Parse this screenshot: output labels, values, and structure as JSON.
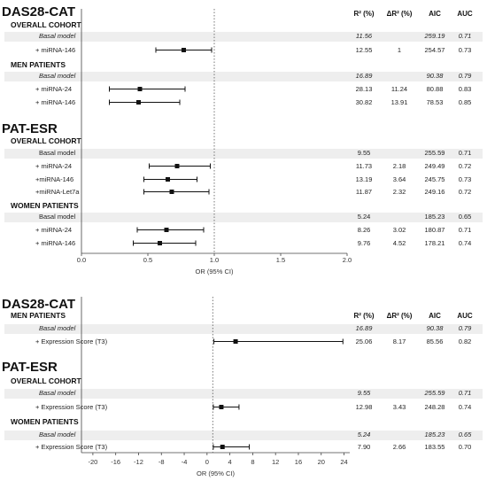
{
  "chart_data": [
    {
      "type": "forest",
      "titles": {
        "das28": "DAS28-CAT",
        "patesr": "PAT-ESR"
      },
      "xlabel": "OR (95% CI)",
      "xlim": [
        0.0,
        2.0
      ],
      "xticks": [
        "0.0",
        "0.5",
        "1.0",
        "1.5",
        "2.0"
      ],
      "reference_line": 1.0,
      "columns": [
        "R² (%)",
        "ΔR² (%)",
        "AIC",
        "AUC"
      ],
      "sections": [
        {
          "key": "das28_overall",
          "label": "OVERALL COHORT"
        },
        {
          "key": "das28_men",
          "label": "MEN PATIENTS"
        },
        {
          "key": "pat_overall",
          "label": "OVERALL COHORT"
        },
        {
          "key": "pat_women",
          "label": "WOMEN PATIENTS"
        }
      ],
      "rows": [
        {
          "section": "das28_overall",
          "label": "Basal model",
          "basal": true,
          "r2": "11.56",
          "dr2": "",
          "aic": "259.19",
          "auc": "0.71",
          "italic": true
        },
        {
          "section": "das28_overall",
          "label": "+ miRNA-146",
          "or": 0.77,
          "lo": 0.56,
          "hi": 0.98,
          "r2": "12.55",
          "dr2": "1",
          "aic": "254.57",
          "auc": "0.73"
        },
        {
          "section": "das28_men",
          "label": "Basal model",
          "basal": true,
          "r2": "16.89",
          "dr2": "",
          "aic": "90.38",
          "auc": "0.79",
          "italic": true
        },
        {
          "section": "das28_men",
          "label": "+ miRNA-24",
          "or": 0.44,
          "lo": 0.21,
          "hi": 0.78,
          "r2": "28.13",
          "dr2": "11.24",
          "aic": "80.88",
          "auc": "0.83"
        },
        {
          "section": "das28_men",
          "label": "+ miRNA-146",
          "or": 0.43,
          "lo": 0.21,
          "hi": 0.74,
          "r2": "30.82",
          "dr2": "13.91",
          "aic": "78.53",
          "auc": "0.85"
        },
        {
          "section": "pat_overall",
          "label": "Basal model",
          "basal": true,
          "r2": "9.55",
          "dr2": "",
          "aic": "255.59",
          "auc": "0.71",
          "italic": false
        },
        {
          "section": "pat_overall",
          "label": "+ miRNA-24",
          "or": 0.72,
          "lo": 0.51,
          "hi": 0.97,
          "r2": "11.73",
          "dr2": "2.18",
          "aic": "249.49",
          "auc": "0.72"
        },
        {
          "section": "pat_overall",
          "label": "+miRNA-146",
          "or": 0.65,
          "lo": 0.47,
          "hi": 0.87,
          "r2": "13.19",
          "dr2": "3.64",
          "aic": "245.75",
          "auc": "0.73"
        },
        {
          "section": "pat_overall",
          "label": "+miRNA-Let7a",
          "or": 0.68,
          "lo": 0.47,
          "hi": 0.96,
          "r2": "11.87",
          "dr2": "2.32",
          "aic": "249.16",
          "auc": "0.72"
        },
        {
          "section": "pat_women",
          "label": "Basal model",
          "basal": true,
          "r2": "5.24",
          "dr2": "",
          "aic": "185.23",
          "auc": "0.65",
          "italic": false
        },
        {
          "section": "pat_women",
          "label": "+ miRNA-24",
          "or": 0.64,
          "lo": 0.42,
          "hi": 0.92,
          "r2": "8.26",
          "dr2": "3.02",
          "aic": "180.87",
          "auc": "0.71"
        },
        {
          "section": "pat_women",
          "label": "+ miRNA-146",
          "or": 0.59,
          "lo": 0.39,
          "hi": 0.86,
          "r2": "9.76",
          "dr2": "4.52",
          "aic": "178.21",
          "auc": "0.74"
        }
      ]
    },
    {
      "type": "forest",
      "titles": {
        "das28": "DAS28-CAT",
        "patesr": "PAT-ESR"
      },
      "xlabel": "OR (95% CI)",
      "xlim": [
        -22,
        25
      ],
      "xticks": [
        "-20",
        "-16",
        "-12",
        "-8",
        "-4",
        "0",
        "4",
        "8",
        "12",
        "16",
        "20",
        "24"
      ],
      "reference_line": 1,
      "columns": [
        "R² (%)",
        "ΔR² (%)",
        "AIC",
        "AUC"
      ],
      "sections": [
        {
          "key": "das28_men",
          "label": "MEN PATIENTS"
        },
        {
          "key": "pat_overall",
          "label": "OVERALL COHORT"
        },
        {
          "key": "pat_women",
          "label": "WOMEN PATIENTS"
        }
      ],
      "rows": [
        {
          "section": "das28_men",
          "label": "Basal model",
          "basal": true,
          "r2": "16.89",
          "dr2": "",
          "aic": "90.38",
          "auc": "0.79",
          "italic": true
        },
        {
          "section": "das28_men",
          "label": "+ Expression Score (T3)",
          "or": 5.0,
          "lo": 1.2,
          "hi": 23.8,
          "r2": "25.06",
          "dr2": "8.17",
          "aic": "85.56",
          "auc": "0.82"
        },
        {
          "section": "pat_overall",
          "label": "Basal model",
          "basal": true,
          "r2": "9.55",
          "dr2": "",
          "aic": "255.59",
          "auc": "0.71",
          "italic": true
        },
        {
          "section": "pat_overall",
          "label": "+ Expression Score (T3)",
          "or": 2.5,
          "lo": 1.1,
          "hi": 5.6,
          "r2": "12.98",
          "dr2": "3.43",
          "aic": "248.28",
          "auc": "0.74"
        },
        {
          "section": "pat_women",
          "label": "Basal model",
          "basal": true,
          "r2": "5.24",
          "dr2": "",
          "aic": "185.23",
          "auc": "0.65",
          "italic": true
        },
        {
          "section": "pat_women",
          "label": "+ Expression Score (T3)",
          "or": 2.7,
          "lo": 1.1,
          "hi": 7.4,
          "r2": "7.90",
          "dr2": "2.66",
          "aic": "183.55",
          "auc": "0.70"
        }
      ]
    }
  ],
  "colors": {
    "band": "#eeeeee",
    "marker": "#111111",
    "axis": "#444444",
    "refline": "#555555"
  }
}
